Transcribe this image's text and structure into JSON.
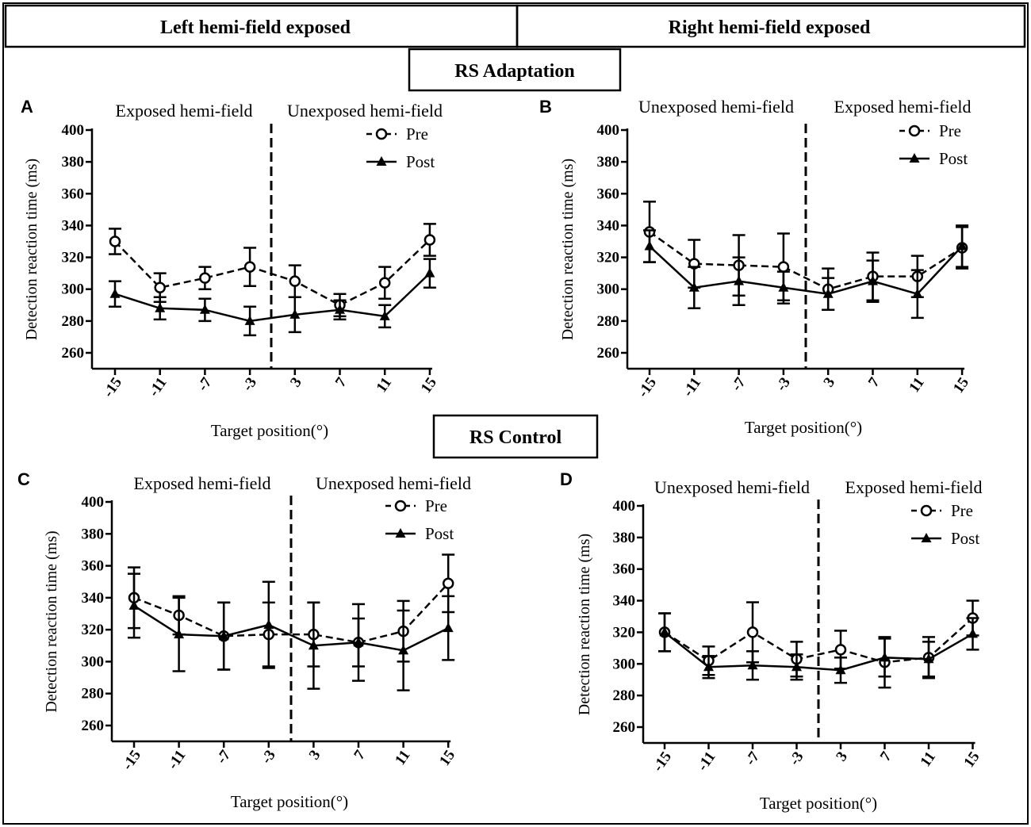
{
  "headers": {
    "left": "Left hemi-field exposed",
    "right": "Right hemi-field exposed",
    "adaptation": "RS Adaptation",
    "control": "RS Control"
  },
  "chart_data": [
    {
      "panel": "A",
      "type": "line",
      "regions": [
        "Exposed hemi-field",
        "Unexposed hemi-field"
      ],
      "categories": [
        "-15",
        "-11",
        "-7",
        "-3",
        "3",
        "7",
        "11",
        "15"
      ],
      "xlabel": "Target position(°)",
      "ylabel": "Detection reaction time (ms)",
      "ylim": [
        250,
        400
      ],
      "yticks": [
        260,
        280,
        300,
        320,
        340,
        360,
        380,
        400
      ],
      "series": [
        {
          "name": "Pre",
          "marker": "circle",
          "dashed": true,
          "values": [
            330,
            301,
            307,
            314,
            305,
            290,
            304,
            331
          ],
          "errors": [
            8,
            9,
            7,
            12,
            10,
            7,
            10,
            10
          ]
        },
        {
          "name": "Post",
          "marker": "triangle",
          "dashed": false,
          "values": [
            297,
            288,
            287,
            280,
            284,
            287,
            283,
            310
          ],
          "errors": [
            8,
            7,
            7,
            9,
            11,
            6,
            7,
            9
          ]
        }
      ]
    },
    {
      "panel": "B",
      "type": "line",
      "regions": [
        "Unexposed hemi-field",
        "Exposed hemi-field"
      ],
      "categories": [
        "-15",
        "-11",
        "-7",
        "-3",
        "3",
        "7",
        "11",
        "15"
      ],
      "xlabel": "Target position(°)",
      "ylabel": "Detection reaction time (ms)",
      "ylim": [
        250,
        400
      ],
      "yticks": [
        260,
        280,
        300,
        320,
        340,
        360,
        380,
        400
      ],
      "series": [
        {
          "name": "Pre",
          "marker": "circle",
          "dashed": true,
          "values": [
            336,
            316,
            315,
            314,
            300,
            308,
            308,
            326
          ],
          "errors": [
            19,
            15,
            19,
            21,
            13,
            15,
            13,
            13
          ]
        },
        {
          "name": "Post",
          "marker": "triangle",
          "dashed": false,
          "values": [
            327,
            301,
            305,
            301,
            297,
            305,
            297,
            327
          ],
          "errors": [
            10,
            13,
            15,
            10,
            10,
            13,
            15,
            13
          ]
        }
      ]
    },
    {
      "panel": "C",
      "type": "line",
      "regions": [
        "Exposed hemi-field",
        "Unexposed hemi-field"
      ],
      "categories": [
        "-15",
        "-11",
        "-7",
        "-3",
        "3",
        "7",
        "11",
        "15"
      ],
      "xlabel": "Target position(°)",
      "ylabel": "Detection reaction time (ms)",
      "ylim": [
        250,
        400
      ],
      "yticks": [
        260,
        280,
        300,
        320,
        340,
        360,
        380,
        400
      ],
      "series": [
        {
          "name": "Pre",
          "marker": "circle",
          "dashed": true,
          "values": [
            340,
            329,
            316,
            317,
            317,
            312,
            319,
            349
          ],
          "errors": [
            19,
            12,
            21,
            20,
            20,
            24,
            19,
            18
          ]
        },
        {
          "name": "Post",
          "marker": "triangle",
          "dashed": false,
          "values": [
            335,
            317,
            316,
            323,
            310,
            312,
            307,
            321
          ],
          "errors": [
            20,
            23,
            21,
            27,
            27,
            15,
            25,
            20
          ]
        }
      ]
    },
    {
      "panel": "D",
      "type": "line",
      "regions": [
        "Unexposed hemi-field",
        "Exposed hemi-field"
      ],
      "categories": [
        "-15",
        "-11",
        "-7",
        "-3",
        "3",
        "7",
        "11",
        "15"
      ],
      "xlabel": "Target position(°)",
      "ylabel": "Detection reaction time (ms)",
      "ylim": [
        250,
        400
      ],
      "yticks": [
        260,
        280,
        300,
        320,
        340,
        360,
        380,
        400
      ],
      "series": [
        {
          "name": "Pre",
          "marker": "circle",
          "dashed": true,
          "values": [
            320,
            302,
            320,
            303,
            309,
            301,
            304,
            329
          ],
          "errors": [
            12,
            9,
            19,
            11,
            12,
            16,
            13,
            11
          ]
        },
        {
          "name": "Post",
          "marker": "triangle",
          "dashed": false,
          "values": [
            320,
            298,
            299,
            298,
            296,
            304,
            303,
            319
          ],
          "errors": [
            12,
            7,
            9,
            8,
            8,
            12,
            11,
            10
          ]
        }
      ]
    }
  ]
}
